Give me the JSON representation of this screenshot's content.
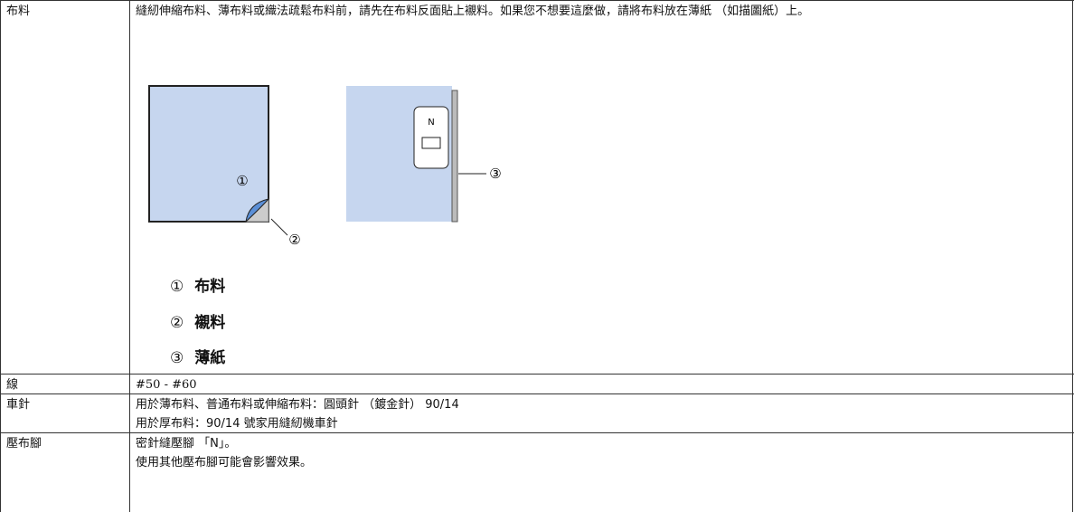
{
  "table": {
    "rows": [
      {
        "label": "布料",
        "lines": [
          "縫紉伸縮布料、薄布料或織法疏鬆布料前，請先在布料反面貼上襯料。如果您不想要這麼做，請將布料放在薄紙 （如描圖紙）上。"
        ],
        "figure": {
          "callouts": [
            "①",
            "②",
            "③"
          ],
          "foot_label": "N"
        },
        "legend": [
          {
            "marker": "①",
            "text": "布料"
          },
          {
            "marker": "②",
            "text": "襯料"
          },
          {
            "marker": "③",
            "text": "薄紙"
          }
        ]
      },
      {
        "label": "線",
        "lines": [
          "#50 - #60"
        ]
      },
      {
        "label": "車針",
        "lines": [
          "用於薄布料、普通布料或伸縮布料：圓頭針 （鍍金針） 90/14",
          "用於厚布料：90/14 號家用縫紉機車針"
        ]
      },
      {
        "label": "壓布腳",
        "lines": [
          "密針縫壓腳 「N」。",
          "使用其他壓布腳可能會影響效果。"
        ]
      }
    ]
  }
}
